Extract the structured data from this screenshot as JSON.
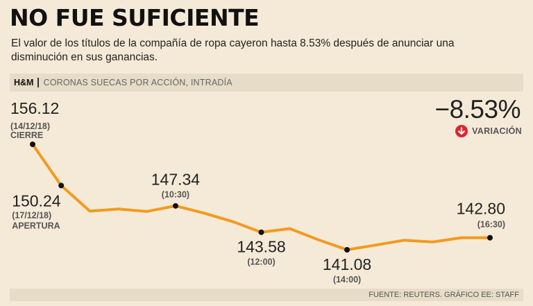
{
  "header": {
    "title": "NO FUE SUFICIENTE",
    "subtitle": "El valor de los títulos de la compañía de ropa cayeron hasta 8.53% después de anunciar una disminución en sus ganancias."
  },
  "tagbar": {
    "company": "H&M",
    "subject": "CORONAS SUECAS POR ACCIÓN, INTRADÍA"
  },
  "change": {
    "value": "−8.53%",
    "label": "VARIACIÓN",
    "icon": "arrow-down-icon",
    "icon_color": "#e0242e"
  },
  "footer": {
    "source": "FUENTE: REUTERS. GRÁFICO EE: STAFF"
  },
  "chart_data": {
    "type": "line",
    "title": "NO FUE SUFICIENTE",
    "ylabel": "Coronas suecas por acción",
    "line_color": "#f39a1e",
    "ylim": [
      140,
      157
    ],
    "values": [
      156.12,
      150.24,
      146.6,
      146.9,
      146.55,
      147.34,
      146.3,
      145.1,
      143.58,
      144.1,
      142.5,
      141.08,
      141.75,
      142.45,
      142.2,
      142.8,
      142.8
    ],
    "annotations": [
      {
        "index": 0,
        "value": "156.12",
        "sub1": "(14/12/18)",
        "sub2": "CIERRE"
      },
      {
        "index": 1,
        "value": "150.24",
        "sub1": "(17/12/18)",
        "sub2": "APERTURA"
      },
      {
        "index": 5,
        "value": "147.34",
        "sub1": "(10:30)"
      },
      {
        "index": 8,
        "value": "143.58",
        "sub1": "(12:00)"
      },
      {
        "index": 11,
        "value": "141.08",
        "sub1": "(14:00)"
      },
      {
        "index": 16,
        "value": "142.80",
        "sub1": "(16:30)"
      }
    ]
  }
}
